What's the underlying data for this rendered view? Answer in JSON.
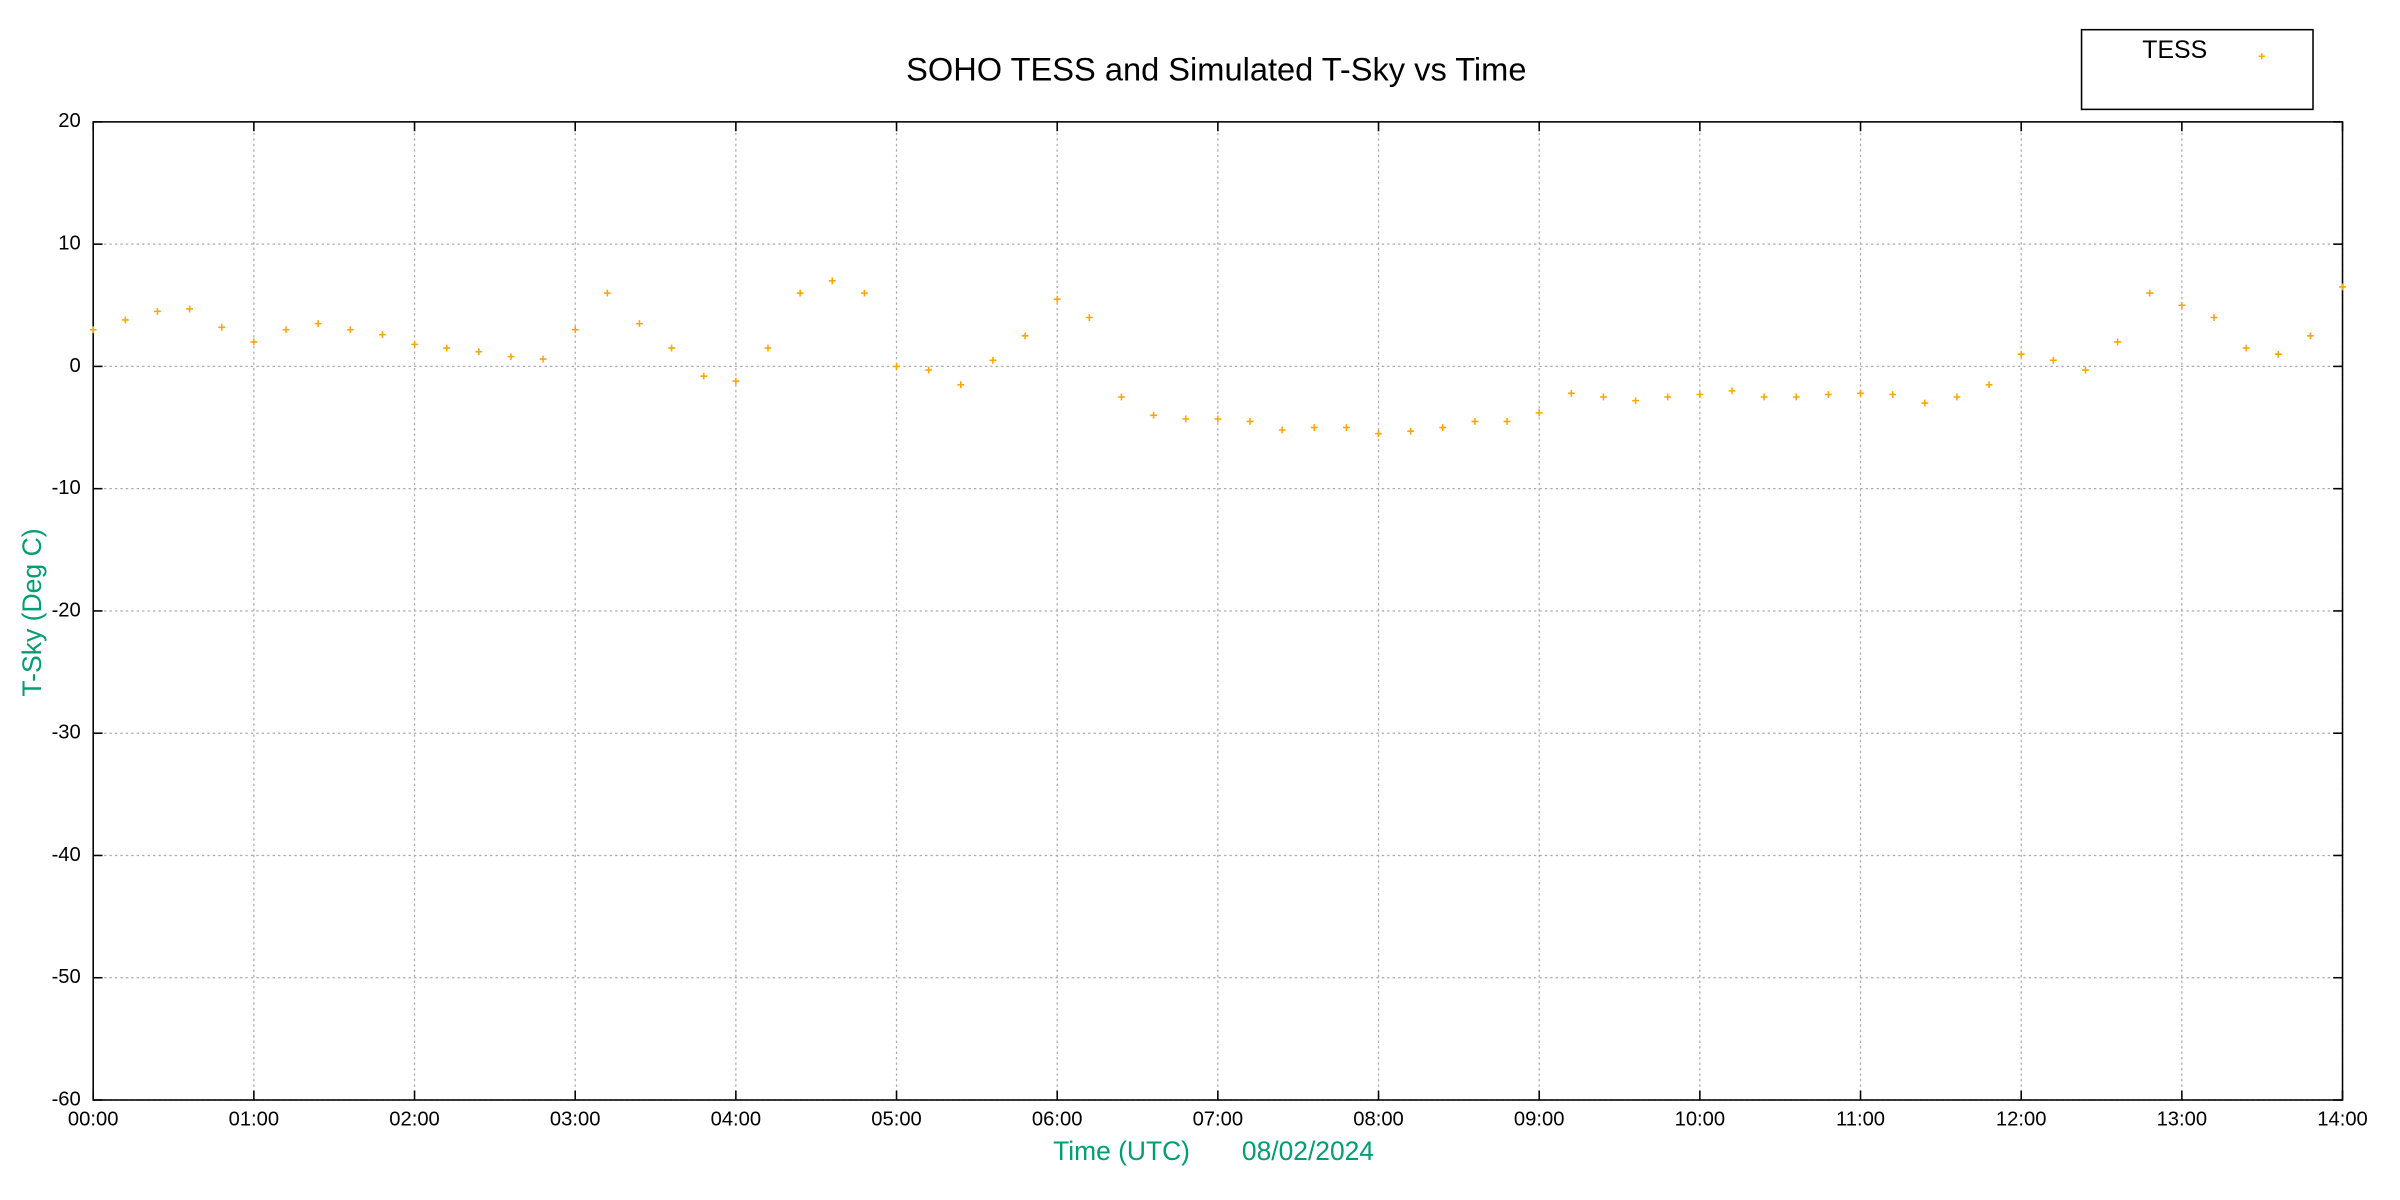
{
  "chart_data": {
    "type": "scatter",
    "title": "SOHO TESS and Simulated T-Sky vs Time",
    "x_label": "Time (UTC)",
    "date_label": "08/02/2024",
    "y_label": "T-Sky (Deg C)",
    "legend_position": "top-right",
    "grid": true,
    "xlim": [
      0,
      14
    ],
    "ylim": [
      -60,
      20
    ],
    "xticks": [
      {
        "value": 0,
        "label": "00:00"
      },
      {
        "value": 1,
        "label": "01:00"
      },
      {
        "value": 2,
        "label": "02:00"
      },
      {
        "value": 3,
        "label": "03:00"
      },
      {
        "value": 4,
        "label": "04:00"
      },
      {
        "value": 5,
        "label": "05:00"
      },
      {
        "value": 6,
        "label": "06:00"
      },
      {
        "value": 7,
        "label": "07:00"
      },
      {
        "value": 8,
        "label": "08:00"
      },
      {
        "value": 9,
        "label": "09:00"
      },
      {
        "value": 10,
        "label": "10:00"
      },
      {
        "value": 11,
        "label": "11:00"
      },
      {
        "value": 12,
        "label": "12:00"
      },
      {
        "value": 13,
        "label": "13:00"
      },
      {
        "value": 14,
        "label": "14:00"
      }
    ],
    "yticks": [
      -60,
      -50,
      -40,
      -30,
      -20,
      -10,
      0,
      10,
      20
    ],
    "x": [
      0,
      0.2,
      0.4,
      0.6,
      0.8,
      1,
      1.2,
      1.4,
      1.6,
      1.8,
      2,
      2.2,
      2.4,
      2.6,
      2.8,
      3,
      3.2,
      3.4,
      3.6,
      3.8,
      4,
      4.2,
      4.4,
      4.6,
      4.8,
      5,
      5.2,
      5.4,
      5.6,
      5.8,
      6,
      6.2,
      6.4,
      6.6,
      6.8,
      7,
      7.2,
      7.4,
      7.6,
      7.8,
      8,
      8.2,
      8.4,
      8.6,
      8.8,
      9,
      9.2,
      9.4,
      9.6,
      9.8,
      10,
      10.2,
      10.4,
      10.6,
      10.8,
      11,
      11.2,
      11.4,
      11.6,
      11.8,
      12,
      12.2,
      12.4,
      12.6,
      12.8,
      13,
      13.2,
      13.4,
      13.6,
      13.8,
      14
    ],
    "series": [
      {
        "name": "TESS",
        "color": "#ffa500",
        "values": [
          3,
          3.8,
          4.5,
          4.7,
          3.2,
          2,
          3,
          3.5,
          3,
          2.6,
          1.8,
          1.5,
          1.2,
          0.8,
          0.6,
          3,
          6,
          3.5,
          1.5,
          -0.8,
          -1.2,
          1.5,
          6,
          7,
          6,
          0,
          -0.3,
          -1.5,
          0.5,
          2.5,
          5.5,
          4,
          -2.5,
          -4,
          -4.3,
          -4.3,
          -4.5,
          -5.2,
          -5,
          -5,
          -5.5,
          -5.3,
          -5,
          -4.5,
          -4.5,
          -3.8,
          -2.2,
          -2.5,
          -2.8,
          -2.5,
          -2.3,
          -2,
          -2.5,
          -2.5,
          -2.3,
          -2.2,
          -2.3,
          -3,
          -2.5,
          -1.5,
          1,
          0.5,
          -0.3,
          2,
          6,
          5,
          4,
          1.5,
          1,
          2.5,
          6.5
        ]
      }
    ]
  }
}
